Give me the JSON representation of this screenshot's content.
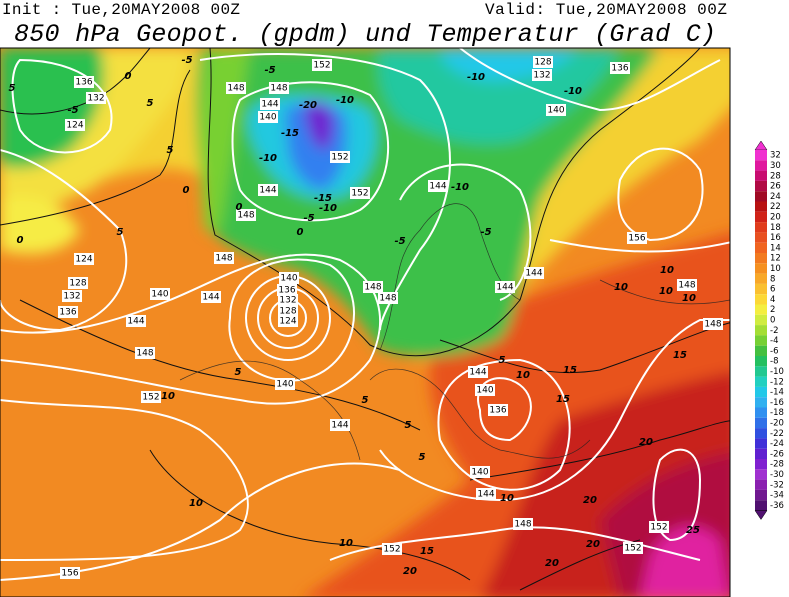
{
  "header": {
    "init": "Init : Tue,20MAY2008 00Z",
    "valid": "Valid: Tue,20MAY2008 00Z",
    "title": "850 hPa Geopot. (gpdm) und Temperatur (Grad C)"
  },
  "colorbar": {
    "labels": [
      32,
      30,
      28,
      26,
      24,
      22,
      20,
      18,
      16,
      14,
      12,
      10,
      8,
      6,
      4,
      2,
      0,
      -2,
      -4,
      -6,
      -8,
      -10,
      -12,
      -14,
      -16,
      -18,
      -20,
      -22,
      -24,
      -26,
      -28,
      -30,
      -32,
      -34,
      -36
    ],
    "colors": [
      "#f030d0",
      "#e0189e",
      "#c80c70",
      "#b00a44",
      "#a00a24",
      "#b81212",
      "#d02218",
      "#e03c1c",
      "#e85020",
      "#f06420",
      "#f27a20",
      "#f59020",
      "#f8a828",
      "#fac030",
      "#fcd836",
      "#f4ee40",
      "#d0ec40",
      "#a4de34",
      "#76d034",
      "#44c040",
      "#24c060",
      "#22c890",
      "#22d0c0",
      "#22c8e8",
      "#30b0f0",
      "#3090f0",
      "#3070e8",
      "#3050e0",
      "#4030d8",
      "#6020d0",
      "#8020d0",
      "#a030d0",
      "#8a20b0",
      "#701890",
      "#501070"
    ]
  },
  "contours": {
    "geopotential": [
      "136",
      "132",
      "124",
      "148",
      "148",
      "152",
      "144",
      "140",
      "152",
      "152",
      "144",
      "148",
      "128",
      "132",
      "136",
      "140",
      "144",
      "124",
      "128",
      "132",
      "136",
      "140",
      "144",
      "148",
      "140",
      "136",
      "132",
      "128",
      "124",
      "148",
      "148",
      "144",
      "144",
      "156",
      "148",
      "148",
      "144",
      "148",
      "152",
      "140",
      "144",
      "144",
      "140",
      "136",
      "140",
      "144",
      "148",
      "152",
      "152",
      "152",
      "156"
    ],
    "temperature": [
      "-5",
      "-5",
      "-10",
      "-20",
      "-15",
      "-10",
      "-15",
      "-10",
      "-5",
      "0",
      "0",
      "5",
      "-5",
      "5",
      "5",
      "0",
      "-10",
      "-10",
      "-10",
      "-5",
      "-5",
      "0",
      "5",
      "10",
      "10",
      "10",
      "10",
      "15",
      "0",
      "5",
      "10",
      "15",
      "15",
      "5",
      "5",
      "5",
      "5",
      "10",
      "20",
      "10",
      "10",
      "20",
      "10",
      "15",
      "20",
      "25",
      "20",
      "20"
    ]
  }
}
